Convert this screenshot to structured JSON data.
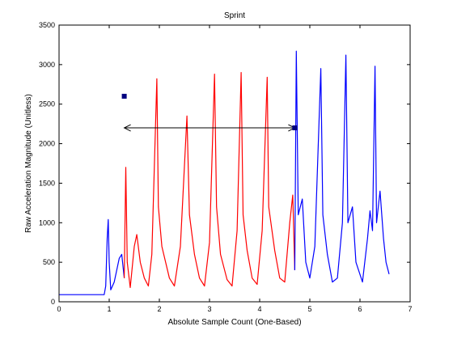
{
  "chart_data": {
    "type": "line",
    "title": "Sprint",
    "xlabel": "Absolute Sample Count (One-Based)",
    "ylabel": "Raw Acceleration Magnitude (Unitless)",
    "xlim": [
      0,
      7
    ],
    "ylim": [
      0,
      3500
    ],
    "x_ticks": [
      "0",
      "1",
      "2",
      "3",
      "4",
      "5",
      "6",
      "7"
    ],
    "y_ticks": [
      "0",
      "500",
      "1000",
      "1500",
      "2000",
      "2500",
      "3000",
      "3500"
    ],
    "grid": false,
    "colors": {
      "pre_post": "#0000ff",
      "sprint": "#ff0000",
      "marker": "#000080",
      "arrow": "#000000"
    },
    "series": [
      {
        "segment": "pre",
        "color": "#0000ff",
        "points": [
          [
            0.0,
            90
          ],
          [
            0.9,
            90
          ],
          [
            0.93,
            200
          ],
          [
            0.96,
            800
          ],
          [
            0.98,
            1040
          ],
          [
            1.0,
            500
          ],
          [
            1.03,
            150
          ],
          [
            1.1,
            250
          ],
          [
            1.2,
            550
          ],
          [
            1.25,
            600
          ],
          [
            1.3,
            300
          ]
        ]
      },
      {
        "segment": "sprint",
        "color": "#ff0000",
        "points": [
          [
            1.3,
            300
          ],
          [
            1.33,
            1700
          ],
          [
            1.36,
            500
          ],
          [
            1.42,
            180
          ],
          [
            1.5,
            700
          ],
          [
            1.55,
            850
          ],
          [
            1.62,
            500
          ],
          [
            1.7,
            300
          ],
          [
            1.78,
            200
          ],
          [
            1.85,
            600
          ],
          [
            1.95,
            2820
          ],
          [
            1.98,
            1200
          ],
          [
            2.05,
            700
          ],
          [
            2.2,
            300
          ],
          [
            2.3,
            200
          ],
          [
            2.42,
            700
          ],
          [
            2.55,
            2350
          ],
          [
            2.6,
            1100
          ],
          [
            2.7,
            600
          ],
          [
            2.8,
            300
          ],
          [
            2.9,
            200
          ],
          [
            3.0,
            750
          ],
          [
            3.1,
            2880
          ],
          [
            3.14,
            1200
          ],
          [
            3.22,
            600
          ],
          [
            3.35,
            280
          ],
          [
            3.45,
            200
          ],
          [
            3.55,
            900
          ],
          [
            3.63,
            2900
          ],
          [
            3.67,
            1100
          ],
          [
            3.75,
            650
          ],
          [
            3.85,
            300
          ],
          [
            3.95,
            220
          ],
          [
            4.05,
            900
          ],
          [
            4.15,
            2840
          ],
          [
            4.18,
            1200
          ],
          [
            4.3,
            650
          ],
          [
            4.4,
            300
          ],
          [
            4.5,
            250
          ],
          [
            4.6,
            1000
          ],
          [
            4.66,
            1350
          ],
          [
            4.7,
            400
          ]
        ]
      },
      {
        "segment": "post",
        "color": "#0000ff",
        "points": [
          [
            4.7,
            400
          ],
          [
            4.73,
            3170
          ],
          [
            4.77,
            1100
          ],
          [
            4.85,
            1300
          ],
          [
            4.92,
            500
          ],
          [
            5.0,
            300
          ],
          [
            5.1,
            700
          ],
          [
            5.22,
            2950
          ],
          [
            5.26,
            1100
          ],
          [
            5.35,
            600
          ],
          [
            5.45,
            250
          ],
          [
            5.55,
            300
          ],
          [
            5.65,
            1000
          ],
          [
            5.72,
            3120
          ],
          [
            5.76,
            1000
          ],
          [
            5.85,
            1200
          ],
          [
            5.92,
            500
          ],
          [
            6.05,
            250
          ],
          [
            6.15,
            800
          ],
          [
            6.2,
            1150
          ],
          [
            6.25,
            900
          ],
          [
            6.3,
            2980
          ],
          [
            6.33,
            1000
          ],
          [
            6.4,
            1400
          ],
          [
            6.47,
            800
          ],
          [
            6.52,
            500
          ],
          [
            6.58,
            350
          ]
        ]
      }
    ],
    "markers": [
      {
        "x": 1.3,
        "y": 2600
      },
      {
        "x": 4.7,
        "y": 2200
      }
    ],
    "arrow": {
      "x1": 1.3,
      "x2": 4.7,
      "y": 2200
    }
  }
}
